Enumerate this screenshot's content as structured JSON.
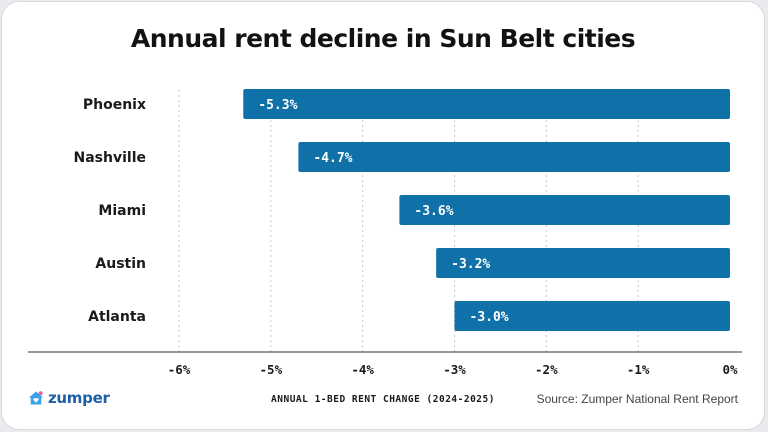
{
  "title": "Annual rent decline in Sun Belt cities",
  "source": "Source: Zumper National Rent Report",
  "brand": {
    "name": "zumper",
    "icon": "house-heart-icon"
  },
  "colors": {
    "bar": "#0f71a8",
    "grid": "#c9c9c9",
    "axis": "#333333"
  },
  "chart_data": {
    "type": "bar",
    "orientation": "horizontal",
    "categories": [
      "Phoenix",
      "Nashville",
      "Miami",
      "Austin",
      "Atlanta"
    ],
    "values": [
      -5.3,
      -4.7,
      -3.6,
      -3.2,
      -3.0
    ],
    "value_labels": [
      "-5.3%",
      "-4.7%",
      "-3.6%",
      "-3.2%",
      "-3.0%"
    ],
    "xlabel": "ANNUAL 1-BED RENT CHANGE (2024-2025)",
    "ylabel": "",
    "xlim": [
      -6,
      0
    ],
    "xticks": [
      -6,
      -5,
      -4,
      -3,
      -2,
      -1,
      0
    ],
    "xtick_labels": [
      "-6%",
      "-5%",
      "-4%",
      "-3%",
      "-2%",
      "-1%",
      "0%"
    ],
    "grid": true
  }
}
